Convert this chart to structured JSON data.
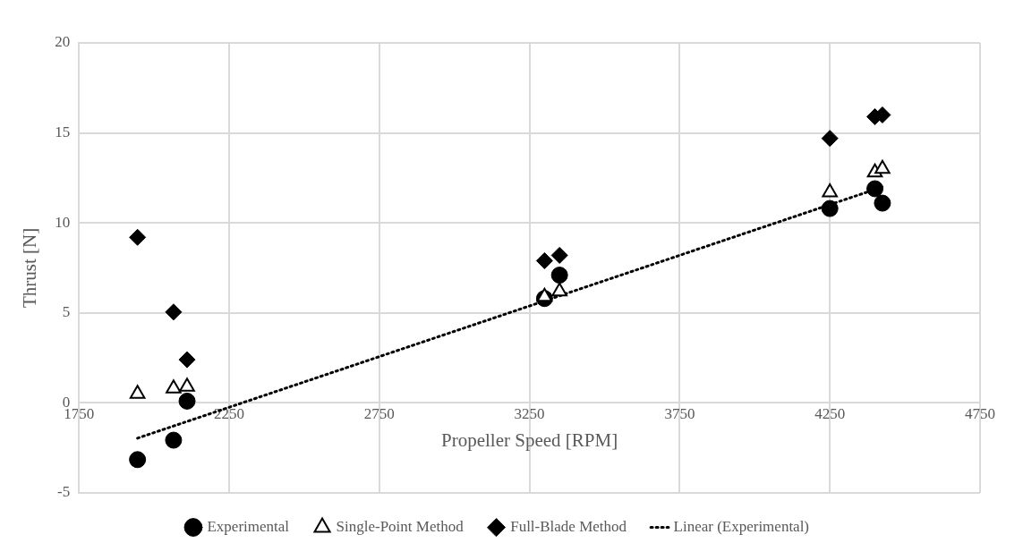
{
  "chart_data": {
    "type": "scatter",
    "xlabel": "Propeller Speed [RPM]",
    "ylabel": "Thrust [N]",
    "x": [
      1945,
      2065,
      2110,
      3300,
      3350,
      4250,
      4400,
      4425
    ],
    "series": [
      {
        "name": "Experimental",
        "color": "#000000",
        "marker": "circle",
        "values": [
          -3.15,
          -2.07,
          0.1,
          5.8,
          7.1,
          10.8,
          11.9,
          11.1
        ]
      },
      {
        "name": "Single-Point Method",
        "color": "#000000",
        "marker": "triangle",
        "values": [
          0.5,
          0.8,
          0.9,
          5.9,
          6.2,
          11.7,
          12.8,
          13.0
        ]
      },
      {
        "name": "Full-Blade Method",
        "color": "#000000",
        "marker": "diamond",
        "values": [
          9.2,
          5.05,
          2.4,
          7.9,
          8.2,
          14.7,
          15.9,
          16.0
        ]
      },
      {
        "name": "Linear (Experimental)",
        "type": "line",
        "color": "#000000",
        "marker": "none",
        "line_style": "dotted",
        "x": [
          1945,
          4425
        ],
        "values": [
          -1.96,
          12.0
        ]
      }
    ],
    "xlim": [
      1750,
      4750
    ],
    "xticks": [
      1750,
      2250,
      2750,
      3250,
      3750,
      4250,
      4750
    ],
    "ylim": [
      -5,
      20
    ],
    "yticks": [
      -5,
      0,
      5,
      10,
      15,
      20
    ],
    "grid": true,
    "legend": "bottom"
  }
}
